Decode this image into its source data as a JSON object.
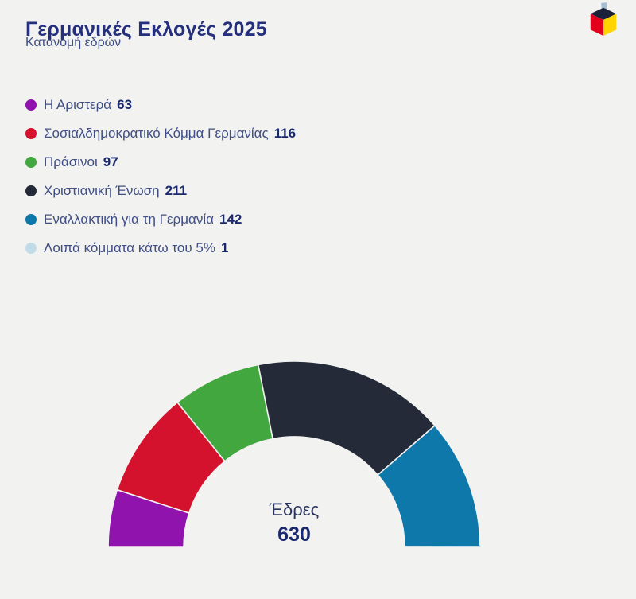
{
  "header": {
    "title": "Γερμανικές Εκλογές 2025",
    "subtitle": "Κατανομή εδρών",
    "logo_colors": {
      "ballot_slip": "#a7bdd3",
      "top": "#1b2138",
      "left_face": "#e3001b",
      "right_face": "#ffd400"
    }
  },
  "theme": {
    "background": "#f2f2f1",
    "title_color": "#25307d",
    "label_color": "#3f4e87",
    "value_color": "#1b2a6e",
    "center_label_color": "#2b3560",
    "slice_separator": "#f2f2f1"
  },
  "chart_data": {
    "type": "half-donut",
    "title": "Κατανομή εδρών",
    "total_seats": 630,
    "center_label": "Έδρες",
    "center_value": "630",
    "legend_position": "top-left",
    "series": [
      {
        "name": "Η Αριστερά",
        "value": 63,
        "color": "#9113ae"
      },
      {
        "name": "Σοσιαλδημοκρατικό Κόμμα Γερμανίας",
        "value": 116,
        "color": "#d4122e"
      },
      {
        "name": "Πράσινοι",
        "value": 97,
        "color": "#41a73e"
      },
      {
        "name": "Χριστιανική Ένωση",
        "value": 211,
        "color": "#242a38"
      },
      {
        "name": "Εναλλακτική για τη Γερμανία",
        "value": 142,
        "color": "#0f78ab"
      },
      {
        "name": "Λοιπά κόμματα κάτω του 5%",
        "value": 1,
        "color": "#c2dbe9"
      }
    ]
  }
}
